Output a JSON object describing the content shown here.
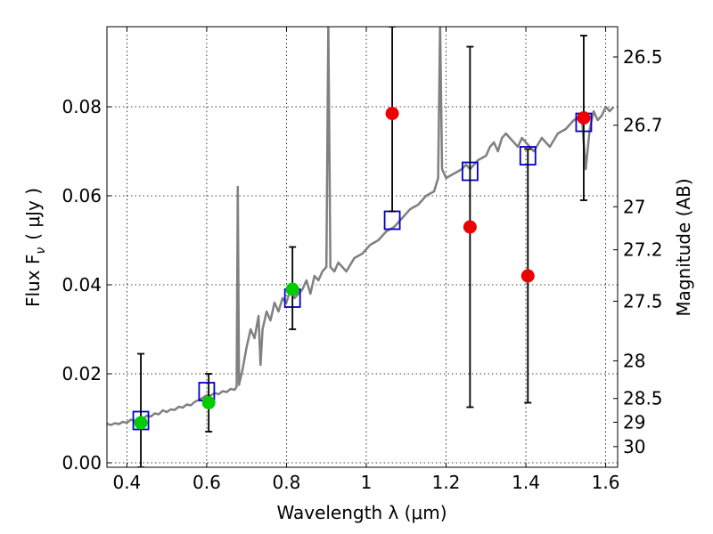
{
  "chart_data": {
    "type": "scatter",
    "xlabel": "Wavelength  λ (μm)",
    "ylabel": "Flux  F",
    "ylabel_sub": "ν",
    "ylabel_units": "( μJy )",
    "y2label": "Magnitude (AB)",
    "xlim": [
      0.35,
      1.63
    ],
    "ylim": [
      -0.001,
      0.098
    ],
    "x_ticks": [
      0.4,
      0.6,
      0.8,
      1.0,
      1.2,
      1.4,
      1.6
    ],
    "x_tick_labels": [
      "0.4",
      "0.6",
      "0.8",
      "1",
      "1.2",
      "1.4",
      "1.6"
    ],
    "y_ticks": [
      0.0,
      0.02,
      0.04,
      0.06,
      0.08
    ],
    "y_tick_labels": [
      "0.00",
      "0.02",
      "0.04",
      "0.06",
      "0.08"
    ],
    "y2_tick_labels": [
      "26.5",
      "26.7",
      "27",
      "27.2",
      "27.5",
      "28",
      "28.5",
      "29",
      "30"
    ],
    "grid": true,
    "colors": {
      "spectrum": "#808080",
      "model_photometry": "#0000cc",
      "detections": "#00cc00",
      "upper_limits": "#ee0000",
      "errorbars": "#000000"
    },
    "series": [
      {
        "style": "line",
        "points": [
          [
            0.35,
            0.0088
          ],
          [
            0.36,
            0.0085
          ],
          [
            0.37,
            0.0089
          ],
          [
            0.38,
            0.0087
          ],
          [
            0.39,
            0.0092
          ],
          [
            0.4,
            0.009
          ],
          [
            0.41,
            0.0097
          ],
          [
            0.42,
            0.0094
          ],
          [
            0.43,
            0.0101
          ],
          [
            0.44,
            0.0099
          ],
          [
            0.45,
            0.0106
          ],
          [
            0.46,
            0.0104
          ],
          [
            0.47,
            0.0111
          ],
          [
            0.48,
            0.0109
          ],
          [
            0.49,
            0.0118
          ],
          [
            0.5,
            0.0114
          ],
          [
            0.51,
            0.012
          ],
          [
            0.52,
            0.0119
          ],
          [
            0.53,
            0.0126
          ],
          [
            0.54,
            0.0124
          ],
          [
            0.55,
            0.0131
          ],
          [
            0.56,
            0.0129
          ],
          [
            0.57,
            0.0137
          ],
          [
            0.58,
            0.0141
          ],
          [
            0.59,
            0.0146
          ],
          [
            0.6,
            0.0152
          ],
          [
            0.61,
            0.0151
          ],
          [
            0.62,
            0.0157
          ],
          [
            0.63,
            0.0154
          ],
          [
            0.64,
            0.0161
          ],
          [
            0.65,
            0.0159
          ],
          [
            0.66,
            0.0166
          ],
          [
            0.67,
            0.0164
          ],
          [
            0.675,
            0.0171
          ],
          [
            0.678,
            0.062
          ],
          [
            0.681,
            0.0175
          ],
          [
            0.69,
            0.021
          ],
          [
            0.7,
            0.026
          ],
          [
            0.71,
            0.03
          ],
          [
            0.72,
            0.028
          ],
          [
            0.73,
            0.033
          ],
          [
            0.735,
            0.022
          ],
          [
            0.74,
            0.03
          ],
          [
            0.75,
            0.034
          ],
          [
            0.76,
            0.032
          ],
          [
            0.77,
            0.036
          ],
          [
            0.78,
            0.034
          ],
          [
            0.79,
            0.037
          ],
          [
            0.8,
            0.036
          ],
          [
            0.81,
            0.039
          ],
          [
            0.82,
            0.037
          ],
          [
            0.83,
            0.038
          ],
          [
            0.84,
            0.039
          ],
          [
            0.85,
            0.041
          ],
          [
            0.86,
            0.038
          ],
          [
            0.87,
            0.042
          ],
          [
            0.88,
            0.041
          ],
          [
            0.89,
            0.043
          ],
          [
            0.9,
            0.044
          ],
          [
            0.905,
            0.099
          ],
          [
            0.91,
            0.044
          ],
          [
            0.92,
            0.043
          ],
          [
            0.93,
            0.045
          ],
          [
            0.95,
            0.043
          ],
          [
            0.97,
            0.046
          ],
          [
            0.99,
            0.047
          ],
          [
            1.01,
            0.049
          ],
          [
            1.03,
            0.05
          ],
          [
            1.05,
            0.052
          ],
          [
            1.07,
            0.053
          ],
          [
            1.09,
            0.055
          ],
          [
            1.11,
            0.057
          ],
          [
            1.13,
            0.058
          ],
          [
            1.15,
            0.06
          ],
          [
            1.17,
            0.061
          ],
          [
            1.18,
            0.064
          ],
          [
            1.185,
            0.099
          ],
          [
            1.19,
            0.066
          ],
          [
            1.2,
            0.064
          ],
          [
            1.22,
            0.065
          ],
          [
            1.24,
            0.066
          ],
          [
            1.25,
            0.067
          ],
          [
            1.26,
            0.066
          ],
          [
            1.28,
            0.068
          ],
          [
            1.3,
            0.069
          ],
          [
            1.31,
            0.071
          ],
          [
            1.32,
            0.072
          ],
          [
            1.33,
            0.07
          ],
          [
            1.34,
            0.073
          ],
          [
            1.35,
            0.074
          ],
          [
            1.36,
            0.073
          ],
          [
            1.37,
            0.072
          ],
          [
            1.38,
            0.071
          ],
          [
            1.39,
            0.073
          ],
          [
            1.4,
            0.072
          ],
          [
            1.42,
            0.07
          ],
          [
            1.44,
            0.073
          ],
          [
            1.46,
            0.071
          ],
          [
            1.48,
            0.074
          ],
          [
            1.5,
            0.075
          ],
          [
            1.52,
            0.077
          ],
          [
            1.54,
            0.078
          ],
          [
            1.55,
            0.066
          ],
          [
            1.56,
            0.075
          ],
          [
            1.57,
            0.079
          ],
          [
            1.58,
            0.077
          ],
          [
            1.59,
            0.078
          ],
          [
            1.6,
            0.08
          ],
          [
            1.61,
            0.079
          ],
          [
            1.62,
            0.08
          ]
        ]
      },
      {
        "style": "open-square",
        "points": [
          [
            0.435,
            0.0095
          ],
          [
            0.6,
            0.016
          ],
          [
            0.815,
            0.037
          ],
          [
            1.065,
            0.0545
          ],
          [
            1.26,
            0.0655
          ],
          [
            1.405,
            0.069
          ],
          [
            1.545,
            0.0765
          ]
        ]
      },
      {
        "style": "green-circle",
        "points": [
          [
            0.435,
            0.009
          ],
          [
            0.605,
            0.0135
          ],
          [
            0.815,
            0.039
          ]
        ]
      },
      {
        "style": "red-circle",
        "points": [
          [
            1.065,
            0.0785
          ],
          [
            1.26,
            0.053
          ],
          [
            1.405,
            0.042
          ],
          [
            1.545,
            0.0775
          ]
        ]
      },
      {
        "style": "errorbars",
        "bars": [
          {
            "x": 0.435,
            "low": -0.001,
            "high": 0.0245
          },
          {
            "x": 0.605,
            "low": 0.007,
            "high": 0.02
          },
          {
            "x": 0.815,
            "low": 0.03,
            "high": 0.0485
          },
          {
            "x": 1.065,
            "low": 0.0565,
            "high": 0.098
          },
          {
            "x": 1.26,
            "low": 0.0125,
            "high": 0.0935
          },
          {
            "x": 1.405,
            "low": 0.0135,
            "high": 0.0705
          },
          {
            "x": 1.545,
            "low": 0.059,
            "high": 0.096
          }
        ]
      }
    ]
  }
}
